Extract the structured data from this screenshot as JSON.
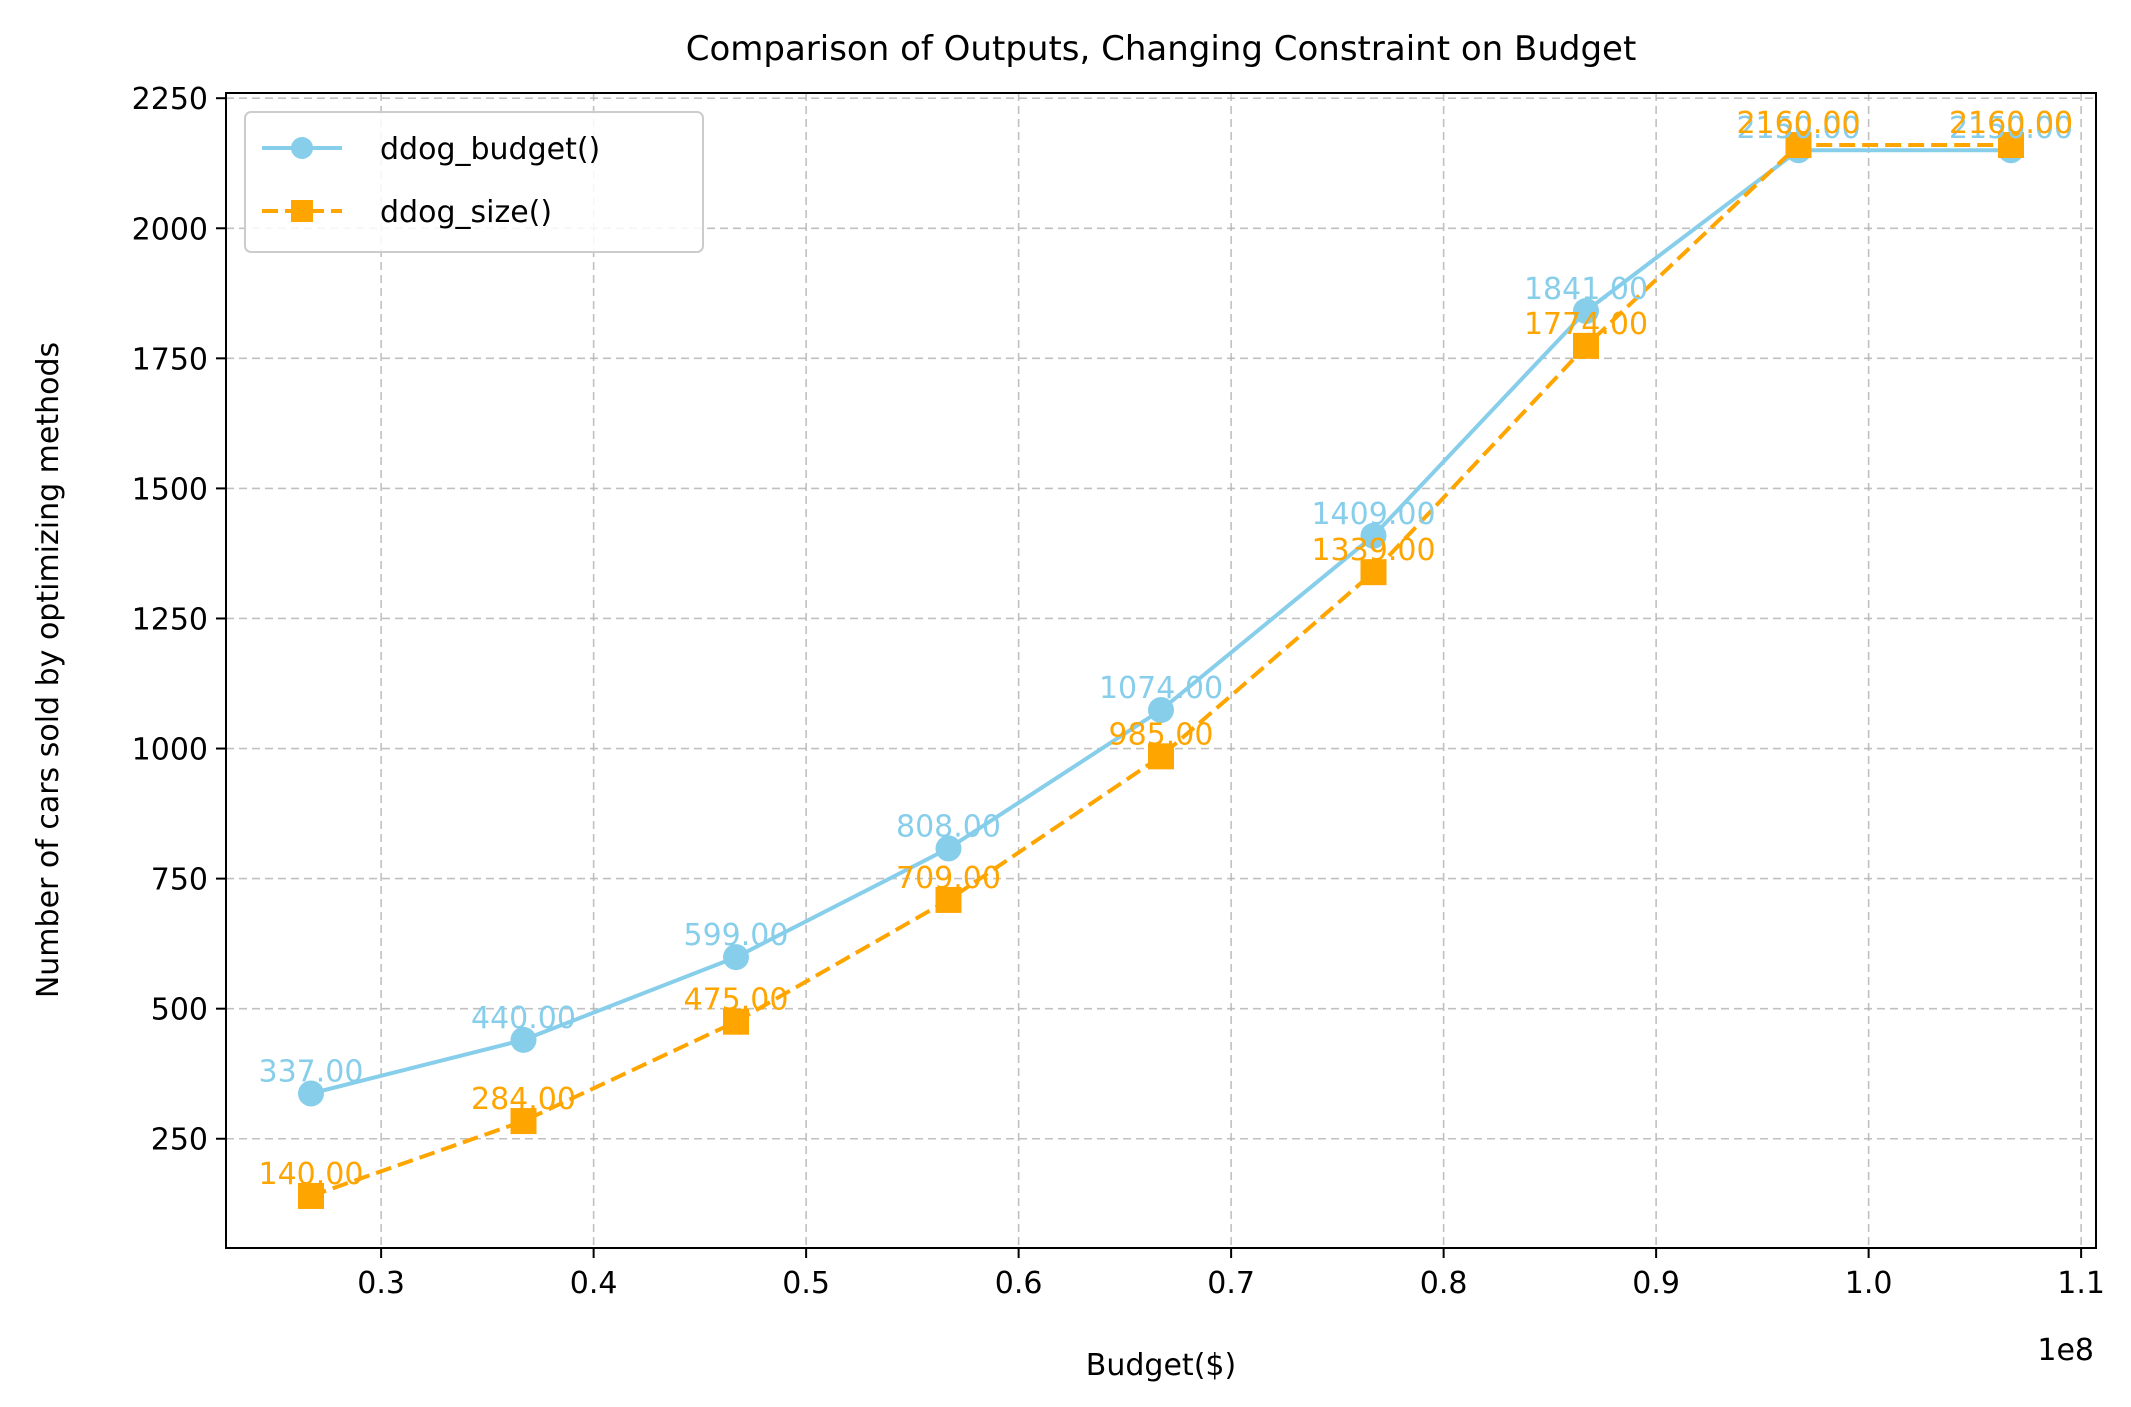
{
  "chart_data": {
    "type": "line",
    "title": "Comparison of Outputs, Changing Constraint on Budget",
    "xlabel": "Budget($)",
    "ylabel": "Number of cars sold by optimizing methods",
    "x_offset_label": "1e8",
    "x": [
      0.267,
      0.367,
      0.467,
      0.567,
      0.667,
      0.767,
      0.867,
      0.967,
      1.067
    ],
    "xlim": [
      0.227,
      1.107
    ],
    "ylim": [
      40,
      2260
    ],
    "xticks": [
      0.3,
      0.4,
      0.5,
      0.6,
      0.7,
      0.8,
      0.9,
      1.0,
      1.1
    ],
    "xtick_labels": [
      "0.3",
      "0.4",
      "0.5",
      "0.6",
      "0.7",
      "0.8",
      "0.9",
      "1.0",
      "1.1"
    ],
    "yticks": [
      250,
      500,
      750,
      1000,
      1250,
      1500,
      1750,
      2000,
      2250
    ],
    "ytick_labels": [
      "250",
      "500",
      "750",
      "1000",
      "1250",
      "1500",
      "1750",
      "2000",
      "2250"
    ],
    "grid": true,
    "legend_position": "top-left",
    "series": [
      {
        "name": "ddog_budget()",
        "color": "#87ceeb",
        "marker": "circle",
        "linestyle": "solid",
        "values": [
          337,
          440,
          599,
          808,
          1074,
          1409,
          1841,
          2150,
          2150
        ],
        "labels": [
          "337.00",
          "440.00",
          "599.00",
          "808.00",
          "1074.00",
          "1409.00",
          "1841.00",
          "2150.00",
          "2150.00"
        ]
      },
      {
        "name": "ddog_size()",
        "color": "#ffa500",
        "marker": "square",
        "linestyle": "dashed",
        "values": [
          140,
          284,
          475,
          709,
          985,
          1339,
          1774,
          2160,
          2160
        ],
        "labels": [
          "140.00",
          "284.00",
          "475.00",
          "709.00",
          "985.00",
          "1339.00",
          "1774.00",
          "2160.00",
          "2160.00"
        ]
      }
    ]
  }
}
